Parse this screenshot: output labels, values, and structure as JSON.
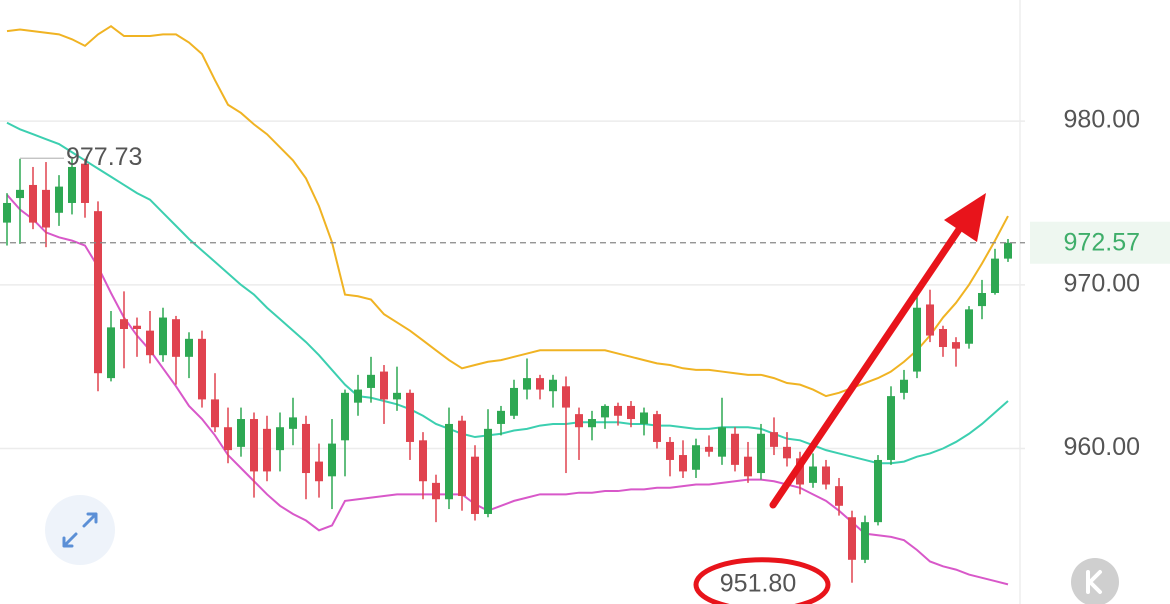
{
  "chart_data": {
    "type": "candlestick",
    "up_color": "#2ea853",
    "down_color": "#e0434f",
    "open": [
      973.8,
      975.3,
      976.1,
      975.8,
      974.4,
      975.0,
      977.4,
      974.5,
      964.3,
      967.9,
      967.5,
      967.2,
      965.7,
      967.9,
      965.6,
      966.7,
      963.0,
      961.3,
      960.1,
      961.8,
      961.2,
      959.9,
      961.2,
      961.5,
      959.2,
      958.3,
      960.5,
      962.8,
      963.7,
      964.7,
      963.0,
      963.4,
      960.5,
      957.9,
      956.9,
      961.7,
      959.5,
      956.0,
      961.5,
      962.0,
      963.6,
      964.3,
      963.5,
      963.8,
      962.1,
      961.3,
      961.9,
      962.6,
      962.6,
      961.5,
      962.1,
      960.4,
      959.6,
      958.7,
      960.1,
      959.5,
      960.9,
      959.5,
      958.5,
      961.0,
      960.1,
      959.4,
      957.9,
      958.9,
      957.7,
      955.8,
      953.2,
      955.5,
      959.3,
      963.4,
      964.7,
      968.8,
      967.3,
      966.5,
      966.4,
      968.7,
      969.5,
      971.6
    ],
    "high": [
      975.6,
      977.7,
      977.2,
      977.5,
      976.7,
      977.7,
      977.7,
      975.1,
      968.4,
      969.6,
      968.0,
      968.4,
      968.6,
      968.1,
      967.1,
      967.2,
      964.6,
      962.5,
      962.5,
      962.2,
      962.0,
      962.2,
      963.1,
      962.0,
      960.3,
      961.8,
      963.6,
      964.5,
      965.6,
      965.1,
      965.0,
      963.6,
      961.0,
      958.4,
      962.5,
      962.0,
      960.2,
      962.4,
      962.6,
      964.2,
      965.5,
      964.5,
      964.5,
      964.4,
      962.5,
      962.3,
      962.7,
      962.8,
      962.9,
      962.5,
      962.3,
      960.7,
      960.5,
      960.6,
      960.8,
      963.1,
      961.3,
      960.4,
      961.5,
      961.9,
      961.0,
      959.8,
      959.7,
      959.3,
      958.2,
      956.2,
      955.9,
      959.6,
      963.8,
      964.8,
      969.5,
      969.7,
      967.5,
      966.8,
      968.7,
      970.3,
      972.2,
      972.8
    ],
    "low": [
      972.4,
      972.5,
      973.4,
      972.3,
      973.6,
      974.3,
      974.1,
      963.5,
      964.1,
      964.9,
      965.6,
      965.2,
      965.3,
      963.9,
      964.3,
      962.5,
      961.0,
      959.1,
      959.5,
      957.0,
      958.0,
      958.6,
      960.2,
      956.9,
      957.0,
      956.3,
      958.3,
      962.0,
      962.8,
      961.5,
      962.3,
      959.3,
      956.9,
      955.5,
      956.3,
      956.2,
      955.6,
      955.8,
      960.8,
      961.8,
      963.0,
      963.0,
      962.5,
      958.5,
      959.3,
      960.5,
      961.2,
      961.4,
      961.3,
      960.8,
      960.0,
      958.3,
      958.2,
      958.2,
      959.5,
      959.0,
      958.6,
      957.9,
      958.1,
      959.6,
      958.9,
      957.2,
      957.6,
      957.5,
      955.9,
      951.8,
      953.0,
      955.3,
      959.0,
      963.0,
      964.3,
      966.5,
      965.6,
      965.0,
      966.1,
      967.9,
      969.4,
      971.4
    ],
    "close": [
      975.0,
      975.8,
      973.8,
      973.5,
      976.0,
      977.2,
      975.0,
      964.6,
      967.4,
      967.3,
      967.3,
      965.7,
      968.0,
      965.6,
      966.7,
      963.0,
      961.3,
      959.9,
      961.8,
      958.6,
      958.6,
      961.3,
      961.9,
      958.5,
      958.0,
      960.3,
      963.4,
      963.6,
      964.5,
      963.0,
      963.4,
      960.4,
      958.0,
      956.9,
      961.5,
      957.1,
      956.0,
      961.2,
      962.3,
      963.7,
      964.3,
      963.6,
      964.2,
      962.5,
      961.3,
      961.8,
      962.6,
      962.0,
      961.8,
      962.2,
      960.4,
      959.3,
      958.6,
      960.2,
      959.8,
      961.3,
      959.0,
      958.3,
      960.9,
      960.1,
      959.4,
      957.8,
      958.9,
      957.8,
      956.5,
      953.2,
      955.5,
      959.3,
      963.2,
      964.2,
      968.6,
      966.9,
      966.2,
      966.1,
      968.5,
      969.5,
      971.6,
      972.57
    ],
    "bands": [
      {
        "color": "#f0b323",
        "values": [
          985.5,
          985.6,
          985.5,
          985.4,
          985.3,
          985.0,
          984.6,
          985.3,
          985.8,
          985.2,
          985.2,
          985.2,
          985.3,
          985.3,
          984.8,
          984.1,
          982.5,
          981.0,
          980.5,
          979.8,
          979.2,
          978.4,
          977.6,
          976.5,
          974.8,
          972.6,
          969.4,
          969.3,
          969.1,
          968.2,
          967.7,
          967.2,
          966.6,
          966.0,
          965.4,
          964.9,
          965.1,
          965.3,
          965.4,
          965.6,
          965.8,
          966.0,
          966.0,
          966.0,
          966.0,
          966.0,
          966.0,
          965.8,
          965.6,
          965.4,
          965.2,
          965.1,
          964.9,
          964.8,
          964.8,
          964.7,
          964.6,
          964.5,
          964.5,
          964.3,
          964.0,
          963.9,
          963.6,
          963.2,
          963.4,
          963.7,
          964.0,
          964.3,
          964.7,
          965.3,
          966.0,
          966.9,
          968.0,
          968.9,
          970.0,
          971.3,
          972.7,
          974.2
        ]
      },
      {
        "color": "#3ccfb0",
        "values": [
          979.9,
          979.5,
          979.2,
          978.9,
          978.6,
          978.1,
          977.6,
          977.1,
          976.6,
          976.1,
          975.6,
          975.2,
          974.4,
          973.6,
          972.8,
          972.1,
          971.4,
          970.7,
          970.0,
          969.4,
          968.6,
          967.9,
          967.2,
          966.5,
          965.7,
          964.8,
          963.9,
          963.2,
          963.1,
          962.9,
          962.7,
          962.4,
          962.0,
          961.5,
          961.2,
          960.9,
          960.7,
          960.8,
          960.9,
          961.1,
          961.2,
          961.4,
          961.5,
          961.5,
          961.6,
          961.6,
          961.6,
          961.6,
          961.5,
          961.5,
          961.4,
          961.4,
          961.3,
          961.2,
          961.2,
          961.3,
          961.3,
          961.3,
          961.2,
          960.9,
          960.6,
          960.5,
          960.2,
          959.9,
          959.7,
          959.5,
          959.3,
          959.1,
          959.1,
          959.2,
          959.5,
          959.7,
          960.0,
          960.4,
          960.9,
          961.5,
          962.2,
          962.9
        ]
      },
      {
        "color": "#d858c9",
        "values": [
          975.5,
          974.6,
          974.0,
          973.2,
          972.9,
          972.7,
          972.4,
          971.1,
          969.5,
          968.0,
          966.9,
          966.0,
          964.9,
          963.8,
          962.6,
          961.8,
          960.8,
          959.6,
          958.8,
          958.0,
          957.2,
          956.5,
          956.0,
          955.6,
          955.0,
          955.3,
          956.8,
          956.9,
          957.0,
          957.1,
          957.2,
          957.2,
          957.2,
          957.2,
          957.2,
          957.2,
          956.6,
          956.2,
          956.5,
          956.8,
          957.0,
          957.2,
          957.2,
          957.2,
          957.3,
          957.3,
          957.4,
          957.4,
          957.5,
          957.5,
          957.6,
          957.6,
          957.7,
          957.8,
          957.8,
          957.9,
          958.0,
          958.1,
          958.1,
          958.0,
          957.8,
          957.6,
          957.2,
          956.8,
          956.2,
          955.5,
          954.8,
          954.7,
          954.6,
          954.4,
          953.8,
          953.1,
          952.8,
          952.6,
          952.3,
          952.1,
          951.9,
          951.7
        ]
      }
    ],
    "ylim": [
      950.5,
      987.4
    ],
    "yticks": [
      {
        "value": 960,
        "label": "960.00"
      },
      {
        "value": 970,
        "label": "970.00"
      },
      {
        "value": 980,
        "label": "980.00"
      }
    ],
    "grid": true,
    "last_price": 972.57,
    "last_price_color": "#3fae6a",
    "annotations": {
      "high": 977.73,
      "low": {
        "value": 951.8,
        "label": "951.80"
      }
    },
    "arrow_color": "#e8141b"
  }
}
